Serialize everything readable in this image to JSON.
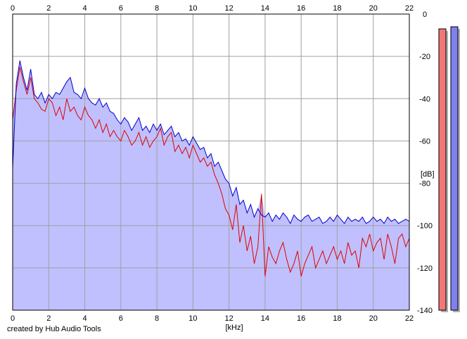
{
  "chart_data": {
    "type": "area",
    "xlabel": "[kHz]",
    "ylabel": "[dB]",
    "xlim": [
      0,
      22
    ],
    "ylim": [
      -140,
      0
    ],
    "x_ticks": [
      "0",
      "2",
      "4",
      "6",
      "8",
      "10",
      "12",
      "14",
      "16",
      "18",
      "20",
      "22"
    ],
    "y_ticks": [
      "0",
      "-20",
      "-40",
      "-60",
      "-80",
      "-100",
      "-120",
      "-140"
    ],
    "grid": true,
    "series": [
      {
        "color": "#0000cc",
        "x": [
          0,
          0.2,
          0.4,
          0.6,
          0.8,
          1.0,
          1.2,
          1.4,
          1.6,
          1.8,
          2.0,
          2.2,
          2.4,
          2.6,
          2.8,
          3.0,
          3.2,
          3.4,
          3.6,
          3.8,
          4.0,
          4.2,
          4.4,
          4.6,
          4.8,
          5.0,
          5.2,
          5.4,
          5.6,
          5.8,
          6.0,
          6.2,
          6.4,
          6.6,
          6.8,
          7.0,
          7.2,
          7.4,
          7.6,
          7.8,
          8.0,
          8.2,
          8.4,
          8.6,
          8.8,
          9.0,
          9.2,
          9.4,
          9.6,
          9.8,
          10.0,
          10.2,
          10.4,
          10.6,
          10.8,
          11.0,
          11.2,
          11.4,
          11.6,
          11.8,
          12.0,
          12.2,
          12.4,
          12.6,
          12.8,
          13.0,
          13.2,
          13.4,
          13.6,
          13.8,
          14.0,
          14.2,
          14.4,
          14.6,
          14.8,
          15.0,
          15.2,
          15.4,
          15.6,
          15.8,
          16.0,
          16.2,
          16.4,
          16.6,
          16.8,
          17.0,
          17.2,
          17.4,
          17.6,
          17.8,
          18.0,
          18.2,
          18.4,
          18.6,
          18.8,
          19.0,
          19.2,
          19.4,
          19.6,
          19.8,
          20.0,
          20.2,
          20.4,
          20.6,
          20.8,
          21.0,
          21.2,
          21.4,
          21.6,
          21.8,
          22.0
        ],
        "y": [
          -73,
          -33,
          -22,
          -30,
          -36,
          -26,
          -38,
          -40,
          -37,
          -42,
          -38,
          -40,
          -37,
          -38,
          -35,
          -32,
          -30,
          -37,
          -38,
          -40,
          -35,
          -40,
          -42,
          -43,
          -40,
          -44,
          -42,
          -46,
          -47,
          -50,
          -52,
          -49,
          -51,
          -55,
          -52,
          -49,
          -55,
          -53,
          -56,
          -52,
          -55,
          -52,
          -57,
          -55,
          -53,
          -58,
          -56,
          -60,
          -59,
          -62,
          -58,
          -61,
          -64,
          -63,
          -68,
          -66,
          -72,
          -70,
          -74,
          -78,
          -80,
          -86,
          -82,
          -90,
          -88,
          -94,
          -90,
          -96,
          -92,
          -95,
          -96,
          -94,
          -98,
          -95,
          -97,
          -94,
          -96,
          -99,
          -95,
          -97,
          -98,
          -96,
          -95,
          -98,
          -97,
          -96,
          -99,
          -98,
          -96,
          -98,
          -95,
          -97,
          -99,
          -96,
          -98,
          -97,
          -98,
          -96,
          -99,
          -98,
          -96,
          -98,
          -97,
          -99,
          -96,
          -98,
          -97,
          -99,
          -98,
          -97,
          -98
        ]
      },
      {
        "color": "#e00000",
        "x": [
          0,
          0.2,
          0.4,
          0.6,
          0.8,
          1.0,
          1.2,
          1.4,
          1.6,
          1.8,
          2.0,
          2.2,
          2.4,
          2.6,
          2.8,
          3.0,
          3.2,
          3.4,
          3.6,
          3.8,
          4.0,
          4.2,
          4.4,
          4.6,
          4.8,
          5.0,
          5.2,
          5.4,
          5.6,
          5.8,
          6.0,
          6.2,
          6.4,
          6.6,
          6.8,
          7.0,
          7.2,
          7.4,
          7.6,
          7.8,
          8.0,
          8.2,
          8.4,
          8.6,
          8.8,
          9.0,
          9.2,
          9.4,
          9.6,
          9.8,
          10.0,
          10.2,
          10.4,
          10.6,
          10.8,
          11.0,
          11.2,
          11.4,
          11.6,
          11.8,
          12.0,
          12.2,
          12.4,
          12.6,
          12.8,
          13.0,
          13.2,
          13.4,
          13.6,
          13.8,
          14.0,
          14.2,
          14.4,
          14.6,
          14.8,
          15.0,
          15.2,
          15.4,
          15.6,
          15.8,
          16.0,
          16.2,
          16.4,
          16.6,
          16.8,
          17.0,
          17.2,
          17.4,
          17.6,
          17.8,
          18.0,
          18.2,
          18.4,
          18.6,
          18.8,
          19.0,
          19.2,
          19.4,
          19.6,
          19.8,
          20.0,
          20.2,
          20.4,
          20.6,
          20.8,
          21.0,
          21.2,
          21.4,
          21.6,
          21.8,
          22.0
        ],
        "y": [
          -50,
          -36,
          -25,
          -32,
          -38,
          -30,
          -40,
          -42,
          -45,
          -46,
          -40,
          -42,
          -48,
          -44,
          -50,
          -40,
          -46,
          -44,
          -48,
          -50,
          -44,
          -48,
          -50,
          -54,
          -50,
          -56,
          -52,
          -58,
          -55,
          -58,
          -60,
          -55,
          -58,
          -62,
          -60,
          -56,
          -62,
          -58,
          -63,
          -60,
          -58,
          -54,
          -62,
          -58,
          -56,
          -65,
          -62,
          -66,
          -63,
          -68,
          -62,
          -66,
          -70,
          -68,
          -72,
          -70,
          -76,
          -80,
          -85,
          -92,
          -95,
          -102,
          -90,
          -108,
          -100,
          -112,
          -105,
          -118,
          -110,
          -85,
          -124,
          -110,
          -115,
          -118,
          -112,
          -108,
          -116,
          -122,
          -118,
          -112,
          -124,
          -118,
          -114,
          -110,
          -120,
          -116,
          -112,
          -118,
          -114,
          -110,
          -116,
          -112,
          -118,
          -108,
          -114,
          -112,
          -120,
          -106,
          -110,
          -104,
          -112,
          -108,
          -106,
          -116,
          -104,
          -110,
          -118,
          -106,
          -104,
          -110,
          -106
        ]
      }
    ],
    "fill_color": "#c0c0ff",
    "level_meters": [
      {
        "color": "#f07878",
        "level_db": -7
      },
      {
        "color": "#8080f0",
        "level_db": -6
      }
    ]
  },
  "footer": {
    "credit": "created by Hub Audio Tools"
  }
}
